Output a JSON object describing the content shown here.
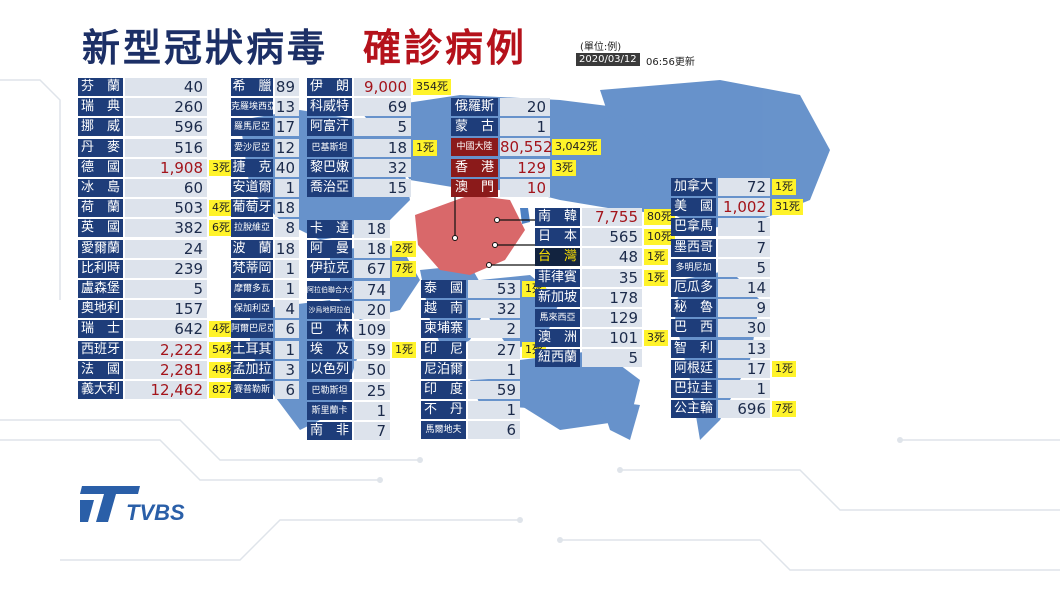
{
  "title": {
    "main": "新型冠狀病毒",
    "accent": "確診病例"
  },
  "unit": "(單位:例)",
  "date": "2020/03/12",
  "updated": "06:56更新",
  "logo": "TVBS",
  "colors": {
    "name_bg": "#1e3d7a",
    "value_bg": "#dde3ec",
    "death_bg": "#fff32a",
    "highlight": "#8b1a1a",
    "title": "#1c2f66",
    "accent": "#b5121b"
  },
  "col1": [
    {
      "name": "芬　蘭",
      "value": "40"
    },
    {
      "name": "瑞　典",
      "value": "260"
    },
    {
      "name": "挪　威",
      "value": "596"
    },
    {
      "name": "丹　麥",
      "value": "516"
    },
    {
      "name": "德　國",
      "value": "1,908",
      "deaths": "3死",
      "red": true
    },
    {
      "name": "冰　島",
      "value": "60"
    },
    {
      "name": "荷　蘭",
      "value": "503",
      "deaths": "4死"
    },
    {
      "name": "英　國",
      "value": "382",
      "deaths": "6死"
    },
    {
      "name": "愛爾蘭",
      "value": "24"
    },
    {
      "name": "比利時",
      "value": "239"
    },
    {
      "name": "盧森堡",
      "value": "5"
    },
    {
      "name": "奧地利",
      "value": "157"
    },
    {
      "name": "瑞　士",
      "value": "642",
      "deaths": "4死"
    },
    {
      "name": "西班牙",
      "value": "2,222",
      "deaths": "54死",
      "red": true
    },
    {
      "name": "法　國",
      "value": "2,281",
      "deaths": "48死",
      "red": true
    },
    {
      "name": "義大利",
      "value": "12,462",
      "deaths": "827死",
      "red": true
    }
  ],
  "col2": [
    {
      "name": "希　臘",
      "value": "89"
    },
    {
      "name": "克羅埃西亞",
      "value": "13",
      "small": true
    },
    {
      "name": "羅馬尼亞",
      "value": "17",
      "small": true
    },
    {
      "name": "愛沙尼亞",
      "value": "12",
      "small": true
    },
    {
      "name": "捷　克",
      "value": "40"
    },
    {
      "name": "安道爾",
      "value": "1"
    },
    {
      "name": "葡萄牙",
      "value": "18"
    },
    {
      "name": "拉脫維亞",
      "value": "8",
      "small": true
    },
    {
      "name": "波　蘭",
      "value": "18"
    },
    {
      "name": "梵蒂岡",
      "value": "1"
    },
    {
      "name": "摩爾多瓦",
      "value": "1",
      "small": true
    },
    {
      "name": "保加利亞",
      "value": "4",
      "small": true
    },
    {
      "name": "阿爾巴尼亞",
      "value": "6",
      "small": true
    },
    {
      "name": "土耳其",
      "value": "1"
    },
    {
      "name": "孟加拉",
      "value": "3"
    },
    {
      "name": "賽普勒斯",
      "value": "6",
      "small": true
    }
  ],
  "col3": [
    {
      "name": "伊　朗",
      "value": "9,000",
      "deaths": "354死",
      "red": true
    },
    {
      "name": "科威特",
      "value": "69"
    },
    {
      "name": "阿富汗",
      "value": "5"
    },
    {
      "name": "巴基斯坦",
      "value": "18",
      "deaths": "1死",
      "small": true
    },
    {
      "name": "黎巴嫩",
      "value": "32"
    },
    {
      "name": "喬治亞",
      "value": "15"
    }
  ],
  "col4": [
    {
      "name": "卡　達",
      "value": "18"
    },
    {
      "name": "阿　曼",
      "value": "18",
      "deaths": "2死"
    },
    {
      "name": "伊拉克",
      "value": "67",
      "deaths": "7死"
    },
    {
      "name": "阿拉伯聯合大公國",
      "value": "74",
      "small": true
    },
    {
      "name": "沙烏地阿拉伯",
      "value": "20",
      "small": true
    },
    {
      "name": "巴　林",
      "value": "109"
    },
    {
      "name": "埃　及",
      "value": "59",
      "deaths": "1死"
    },
    {
      "name": "以色列",
      "value": "50"
    },
    {
      "name": "巴勒斯坦",
      "value": "25",
      "small": true
    },
    {
      "name": "斯里蘭卡",
      "value": "1",
      "small": true
    },
    {
      "name": "南　非",
      "value": "7"
    }
  ],
  "col5": [
    {
      "name": "俄羅斯",
      "value": "20"
    },
    {
      "name": "蒙　古",
      "value": "1"
    },
    {
      "name": "中國大陸",
      "value": "80,552",
      "deaths": "3,042死",
      "red": true,
      "hl": true,
      "small": true
    },
    {
      "name": "香　港",
      "value": "129",
      "deaths": "3死",
      "red": true,
      "hl": true
    },
    {
      "name": "澳　門",
      "value": "10",
      "red": true,
      "hl": true
    }
  ],
  "col6": [
    {
      "name": "泰　國",
      "value": "53",
      "deaths": "1死"
    },
    {
      "name": "越　南",
      "value": "32"
    },
    {
      "name": "柬埔寨",
      "value": "2"
    },
    {
      "name": "印　尼",
      "value": "27",
      "deaths": "1死"
    },
    {
      "name": "尼泊爾",
      "value": "1"
    },
    {
      "name": "印　度",
      "value": "59"
    },
    {
      "name": "不　丹",
      "value": "1"
    },
    {
      "name": "馬爾地夫",
      "value": "6",
      "small": true
    }
  ],
  "col7": [
    {
      "name": "南　韓",
      "value": "7,755",
      "deaths": "80死",
      "red": true
    },
    {
      "name": "日　本",
      "value": "565",
      "deaths": "10死"
    },
    {
      "name": "台　灣",
      "value": "48",
      "deaths": "1死",
      "tw": true
    },
    {
      "name": "菲律賓",
      "value": "35",
      "deaths": "1死"
    },
    {
      "name": "新加坡",
      "value": "178"
    },
    {
      "name": "馬來西亞",
      "value": "129",
      "small": true
    },
    {
      "name": "澳　洲",
      "value": "101",
      "deaths": "3死"
    },
    {
      "name": "紐西蘭",
      "value": "5"
    }
  ],
  "col8": [
    {
      "name": "加拿大",
      "value": "72",
      "deaths": "1死"
    },
    {
      "name": "美　國",
      "value": "1,002",
      "deaths": "31死",
      "red": true
    },
    {
      "name": "巴拿馬",
      "value": "1"
    },
    {
      "name": "墨西哥",
      "value": "7"
    },
    {
      "name": "多明尼加",
      "value": "5",
      "small": true
    },
    {
      "name": "厄瓜多",
      "value": "14"
    },
    {
      "name": "秘　魯",
      "value": "9"
    },
    {
      "name": "巴　西",
      "value": "30"
    },
    {
      "name": "智　利",
      "value": "13"
    },
    {
      "name": "阿根廷",
      "value": "17",
      "deaths": "1死"
    },
    {
      "name": "巴拉圭",
      "value": "1"
    },
    {
      "name": "公主輪",
      "value": "696",
      "deaths": "7死"
    }
  ]
}
